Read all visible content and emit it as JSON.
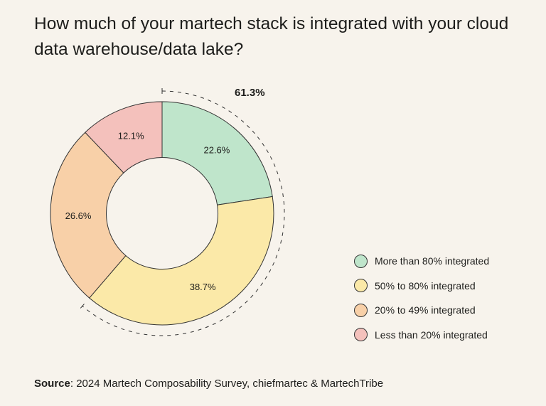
{
  "title": "How much of your martech stack is integrated with your cloud data warehouse/data lake?",
  "chart_data": {
    "type": "pie",
    "subtype": "donut",
    "categories": [
      "More than 80% integrated",
      "50% to 80% integrated",
      "20% to 49% integrated",
      "Less than 20% integrated"
    ],
    "values": [
      22.6,
      38.7,
      26.6,
      12.1
    ],
    "data_labels": [
      "22.6%",
      "38.7%",
      "26.6%",
      "12.1%"
    ],
    "colors": [
      "#bfe5cb",
      "#fbe9a8",
      "#f8d0a8",
      "#f4c1bc"
    ],
    "annotation": {
      "label": "61.3%",
      "spans": [
        "More than 80% integrated",
        "50% to 80% integrated"
      ]
    },
    "legend_position": "right"
  },
  "source": {
    "label": "Source",
    "text": ": 2024 Martech Composability Survey, chiefmartec & MartechTribe"
  }
}
